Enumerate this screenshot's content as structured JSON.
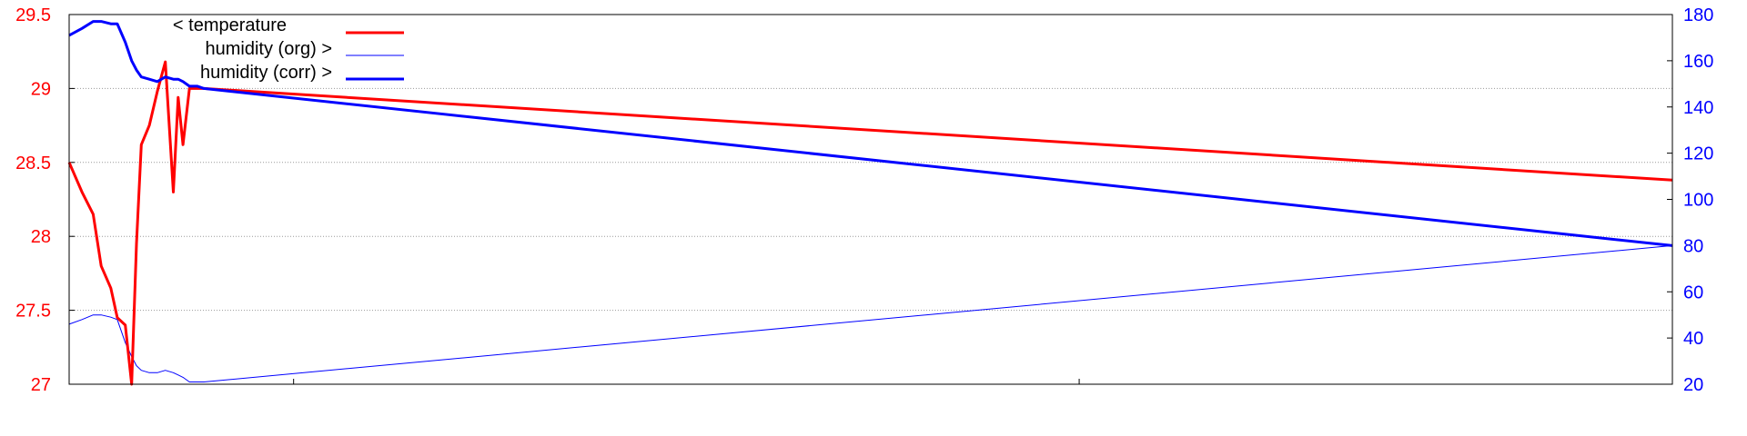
{
  "chart_data": {
    "type": "line",
    "title": "",
    "xlabel": "",
    "x_tick_labels": [],
    "grid": true,
    "legend_placement": "top-left",
    "y_left": {
      "lim": [
        27,
        29.5
      ],
      "ticks": [
        "27",
        "27.5",
        "28",
        "28.5",
        "29",
        "29.5"
      ],
      "color": "#ff0000"
    },
    "y_right": {
      "lim": [
        20,
        180
      ],
      "ticks": [
        "20",
        "40",
        "60",
        "80",
        "100",
        "120",
        "140",
        "160",
        "180"
      ],
      "color": "#0000ff"
    },
    "x": [
      0,
      0.8,
      1.5,
      2.0,
      2.6,
      3.0,
      3.5,
      3.9,
      4.2,
      4.5,
      5.0,
      5.5,
      6.0,
      6.5,
      6.8,
      7.1,
      7.5,
      8.0,
      8.4,
      100
    ],
    "series": [
      {
        "name": "< temperature",
        "axis": "left",
        "color": "#ff0000",
        "width": 3,
        "values": [
          28.5,
          28.3,
          28.15,
          27.8,
          27.65,
          27.45,
          27.4,
          27.0,
          27.95,
          28.62,
          28.75,
          28.98,
          29.18,
          28.3,
          28.94,
          28.62,
          29.0,
          29.0,
          29.0,
          28.38
        ]
      },
      {
        "name": "humidity (org) >",
        "axis": "right",
        "color": "#0000ff",
        "width": 1,
        "values": [
          46,
          48,
          50,
          50,
          49,
          48,
          38,
          32,
          28,
          26,
          25,
          25,
          26,
          25,
          24,
          23,
          21,
          21,
          21,
          80
        ]
      },
      {
        "name": "humidity (corr) >",
        "axis": "right",
        "color": "#0000ff",
        "width": 3,
        "values": [
          171,
          174,
          177,
          177,
          176,
          176,
          168,
          160,
          156,
          153,
          152,
          151,
          153,
          152,
          152,
          151,
          149,
          149,
          148,
          80
        ]
      }
    ]
  }
}
